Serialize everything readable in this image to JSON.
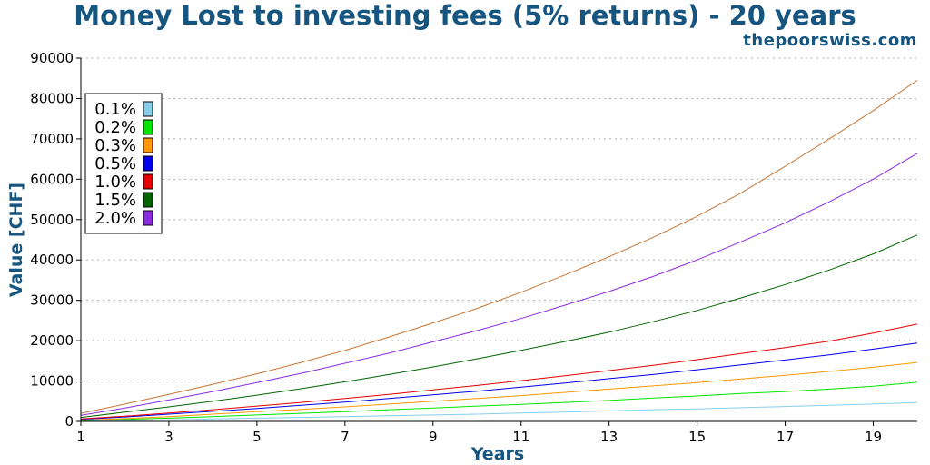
{
  "chart_data": {
    "type": "line",
    "title": "Money Lost to investing fees (5% returns) - 20 years",
    "subtitle": "thepoorswiss.com",
    "xlabel": "Years",
    "ylabel": "Value [CHF]",
    "xlim": [
      1,
      20
    ],
    "ylim": [
      0,
      90000
    ],
    "x_ticks": [
      1,
      3,
      5,
      7,
      9,
      11,
      13,
      15,
      17,
      19
    ],
    "y_ticks": [
      0,
      10000,
      20000,
      30000,
      40000,
      50000,
      60000,
      70000,
      80000,
      90000
    ],
    "grid": "horizontal dotted",
    "legend_position": "top-left",
    "x": [
      1,
      2,
      3,
      4,
      5,
      6,
      7,
      8,
      9,
      10,
      11,
      12,
      13,
      14,
      15,
      16,
      17,
      18,
      19,
      20
    ],
    "series": [
      {
        "name": "0.1%",
        "color": "#87ceeb",
        "values": [
          100,
          200,
          400,
          600,
          800,
          1000,
          1200,
          1400,
          1600,
          1800,
          2100,
          2300,
          2600,
          2900,
          3100,
          3400,
          3700,
          4000,
          4300,
          4700
        ]
      },
      {
        "name": "0.2%",
        "color": "#00e600",
        "values": [
          200,
          500,
          800,
          1200,
          1600,
          2000,
          2400,
          2900,
          3300,
          3800,
          4200,
          4700,
          5200,
          5800,
          6300,
          6900,
          7400,
          8000,
          8700,
          9700
        ]
      },
      {
        "name": "0.3%",
        "color": "#ff9900",
        "values": [
          300,
          700,
          1200,
          1800,
          2400,
          3000,
          3600,
          4300,
          5000,
          5700,
          6400,
          7200,
          8000,
          8800,
          9600,
          10500,
          11400,
          12400,
          13400,
          14600
        ]
      },
      {
        "name": "0.5%",
        "color": "#0000ee",
        "values": [
          500,
          1100,
          1800,
          2500,
          3200,
          4000,
          4800,
          5700,
          6600,
          7500,
          8500,
          9500,
          10600,
          11600,
          12800,
          14000,
          15200,
          16500,
          17900,
          19400
        ]
      },
      {
        "name": "1.0%",
        "color": "#e60000",
        "values": [
          600,
          1300,
          2100,
          2900,
          3800,
          4700,
          5700,
          6700,
          7800,
          8900,
          10100,
          11300,
          12600,
          13900,
          15300,
          16800,
          18300,
          19900,
          21900,
          24100
        ]
      },
      {
        "name": "1.5%",
        "color": "#006400",
        "values": [
          1000,
          2300,
          3600,
          5000,
          6500,
          8100,
          9800,
          11600,
          13500,
          15500,
          17600,
          19800,
          22100,
          24700,
          27500,
          30600,
          33900,
          37500,
          41500,
          46200
        ]
      },
      {
        "name": "2.0%",
        "color": "#8a2be2",
        "values": [
          1500,
          3300,
          5300,
          7400,
          9600,
          11900,
          14400,
          16900,
          19700,
          22500,
          25500,
          28800,
          32200,
          35900,
          40000,
          44500,
          49200,
          54400,
          60000,
          66400
        ]
      },
      {
        "name": "",
        "color": "#c87533",
        "values": [
          2000,
          4300,
          6700,
          9200,
          11800,
          14600,
          17600,
          20900,
          24400,
          28000,
          32000,
          36300,
          40800,
          45600,
          50800,
          56600,
          63200,
          70000,
          77000,
          84500
        ]
      }
    ]
  }
}
